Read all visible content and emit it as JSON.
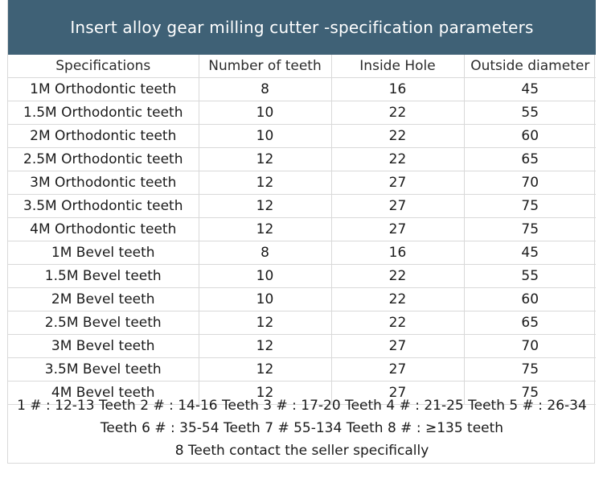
{
  "title": "Insert alloy gear milling cutter -specification parameters",
  "table": {
    "headers": [
      "Specifications",
      "Number of teeth",
      "Inside Hole",
      "Outside diameter"
    ],
    "rows": [
      [
        "1M Orthodontic teeth",
        "8",
        "16",
        "45"
      ],
      [
        "1.5M Orthodontic teeth",
        "10",
        "22",
        "55"
      ],
      [
        "2M Orthodontic teeth",
        "10",
        "22",
        "60"
      ],
      [
        "2.5M Orthodontic teeth",
        "12",
        "22",
        "65"
      ],
      [
        "3M Orthodontic teeth",
        "12",
        "27",
        "70"
      ],
      [
        "3.5M Orthodontic teeth",
        "12",
        "27",
        "75"
      ],
      [
        "4M Orthodontic teeth",
        "12",
        "27",
        "75"
      ],
      [
        "1M Bevel teeth",
        "8",
        "16",
        "45"
      ],
      [
        "1.5M Bevel teeth",
        "10",
        "22",
        "55"
      ],
      [
        "2M Bevel teeth",
        "10",
        "22",
        "60"
      ],
      [
        "2.5M Bevel teeth",
        "12",
        "22",
        "65"
      ],
      [
        "3M Bevel teeth",
        "12",
        "27",
        "70"
      ],
      [
        "3.5M Bevel teeth",
        "12",
        "27",
        "75"
      ],
      [
        "4M Bevel teeth",
        "12",
        "27",
        "75"
      ]
    ]
  },
  "notes": {
    "line1": "1 # : 12-13 Teeth 2 # : 14-16 Teeth 3 # : 17-20 Teeth 4 # : 21-25 Teeth 5 # : 26-34",
    "line2": "Teeth 6 # : 35-54 Teeth 7 # 55-134 Teeth 8 # : ≥135 teeth",
    "line3": "8 Teeth contact the seller specifically"
  },
  "colors": {
    "title_background": "#3f6176",
    "title_text": "#ffffff",
    "grid_lines": "#d9d9d9"
  }
}
